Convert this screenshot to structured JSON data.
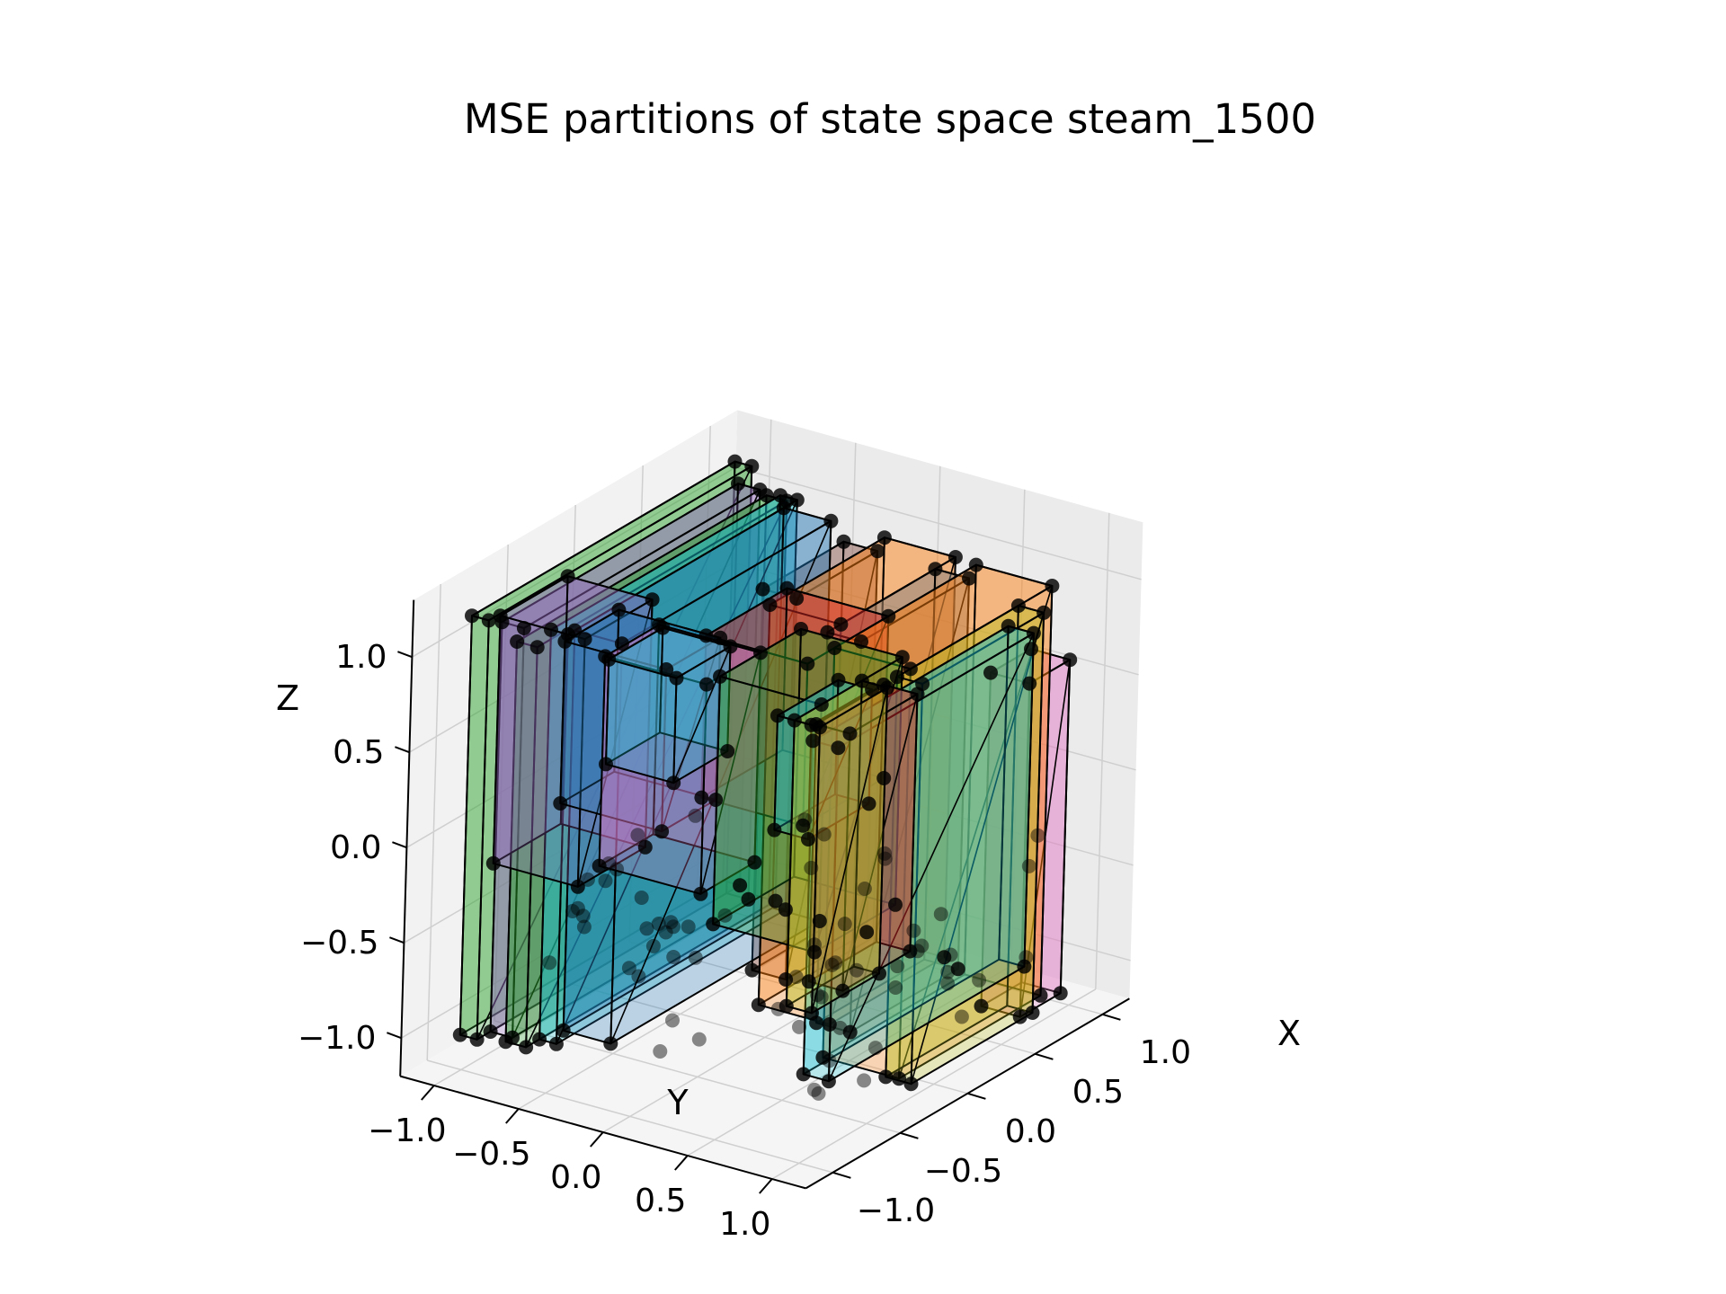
{
  "chart_data": {
    "type": "scatter",
    "projection": "3d",
    "title": "MSE partitions of state space steam_1500",
    "xlabel": "X",
    "ylabel": "Y",
    "zlabel": "Z",
    "x_ticks": [
      "−1.0",
      "−0.5",
      "0.0",
      "0.5",
      "1.0"
    ],
    "y_ticks": [
      "−1.0",
      "−0.5",
      "0.0",
      "0.5",
      "1.0"
    ],
    "z_ticks": [
      "−1.0",
      "−0.5",
      "0.0",
      "0.5",
      "1.0"
    ],
    "xlim": [
      -1.2,
      1.2
    ],
    "ylim": [
      -1.2,
      1.2
    ],
    "zlim": [
      -1.2,
      1.3
    ],
    "grid": true,
    "point_color": "#000000",
    "partitions": [
      {
        "color": "#2ca02c",
        "x": [
          -0.95,
          1.0
        ],
        "y": [
          -1.05,
          -0.95
        ],
        "z": [
          -1.05,
          1.15
        ]
      },
      {
        "color": "#9467bd",
        "x": [
          -0.85,
          0.9
        ],
        "y": [
          -0.95,
          -0.82
        ],
        "z": [
          -1.05,
          1.1
        ]
      },
      {
        "color": "#2ca02c",
        "x": [
          -0.9,
          0.95
        ],
        "y": [
          -0.82,
          -0.7
        ],
        "z": [
          -1.05,
          1.05
        ]
      },
      {
        "color": "#17becf",
        "x": [
          -0.8,
          0.9
        ],
        "y": [
          -0.7,
          -0.6
        ],
        "z": [
          -1.05,
          1.1
        ]
      },
      {
        "color": "#1f77b4",
        "x": [
          -0.75,
          0.8
        ],
        "y": [
          -0.6,
          -0.32
        ],
        "z": [
          -1.0,
          1.1
        ]
      },
      {
        "color": "#8c564b",
        "x": [
          0.3,
          0.9
        ],
        "y": [
          -0.32,
          -0.12
        ],
        "z": [
          -1.05,
          0.95
        ]
      },
      {
        "color": "#ff7f0e",
        "x": [
          0.1,
          0.95
        ],
        "y": [
          -0.12,
          0.3
        ],
        "z": [
          -1.1,
          1.0
        ]
      },
      {
        "color": "#7f7f7f",
        "x": [
          0.0,
          0.8
        ],
        "y": [
          0.3,
          0.5
        ],
        "z": [
          -1.05,
          1.0
        ]
      },
      {
        "color": "#ff7f0e",
        "x": [
          -0.2,
          0.85
        ],
        "y": [
          0.5,
          0.95
        ],
        "z": [
          -1.1,
          1.05
        ]
      },
      {
        "color": "#e377c2",
        "x": [
          0.7,
          1.0
        ],
        "y": [
          0.72,
          0.95
        ],
        "z": [
          -1.15,
          0.6
        ]
      },
      {
        "color": "#bcbd22",
        "x": [
          -0.3,
          0.6
        ],
        "y": [
          0.95,
          1.1
        ],
        "z": [
          -1.05,
          1.05
        ]
      },
      {
        "color": "#17becf",
        "x": [
          -1.05,
          0.4
        ],
        "y": [
          1.05,
          1.2
        ],
        "z": [
          -0.7,
          1.05
        ]
      },
      {
        "color": "#d62728",
        "x": [
          -0.9,
          -0.4
        ],
        "y": [
          0.95,
          1.15
        ],
        "z": [
          -0.3,
          1.05
        ]
      },
      {
        "color": "#bcbd22",
        "x": [
          -1.0,
          -0.5
        ],
        "y": [
          0.9,
          1.05
        ],
        "z": [
          -0.4,
          1.1
        ]
      },
      {
        "color": "#17becf",
        "x": [
          -1.0,
          -0.55
        ],
        "y": [
          0.8,
          1.0
        ],
        "z": [
          0.5,
          1.1
        ]
      },
      {
        "color": "#2ca02c",
        "x": [
          -0.8,
          -0.2
        ],
        "y": [
          0.3,
          0.9
        ],
        "z": [
          -0.2,
          1.1
        ]
      },
      {
        "color": "#1f77b4",
        "x": [
          -0.95,
          -0.55
        ],
        "y": [
          -0.5,
          0.1
        ],
        "z": [
          0.3,
          1.15
        ]
      },
      {
        "color": "#e377c2",
        "x": [
          -0.9,
          -0.5
        ],
        "y": [
          -0.3,
          0.3
        ],
        "z": [
          0.0,
          1.1
        ]
      },
      {
        "color": "#d62728",
        "x": [
          -0.4,
          0.2
        ],
        "y": [
          -0.1,
          0.5
        ],
        "z": [
          0.2,
          1.05
        ]
      },
      {
        "color": "#9467bd",
        "x": [
          -0.8,
          -0.3
        ],
        "y": [
          -1.0,
          -0.5
        ],
        "z": [
          -0.2,
          1.1
        ]
      },
      {
        "color": "#17becf",
        "x": [
          -1.0,
          -0.6
        ],
        "y": [
          -0.2,
          0.2
        ],
        "z": [
          0.6,
          1.15
        ]
      }
    ]
  }
}
